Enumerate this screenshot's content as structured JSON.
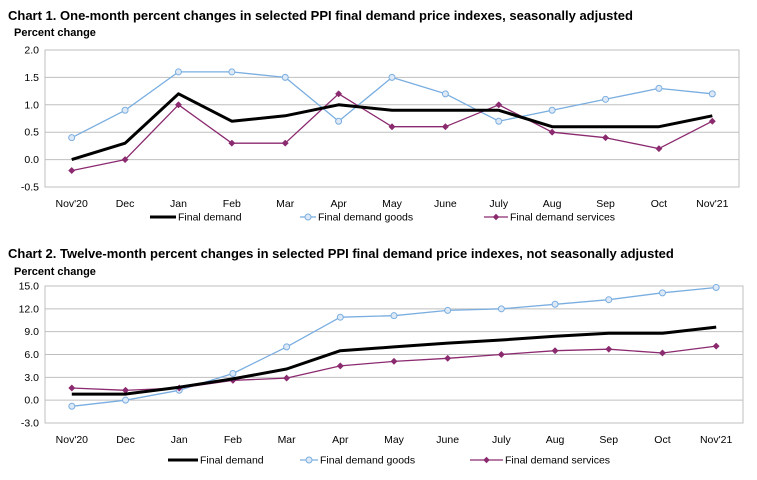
{
  "chart_data": [
    {
      "type": "line",
      "title": "Chart 1. One-month percent changes in selected PPI final demand price indexes, seasonally adjusted",
      "ylabel": "Percent change",
      "xlabel": "",
      "ylim": [
        -0.5,
        2.0
      ],
      "yticks": [
        "2.0",
        "1.5",
        "1.0",
        "0.5",
        "0.0",
        "-0.5"
      ],
      "ytick_values": [
        2.0,
        1.5,
        1.0,
        0.5,
        0.0,
        -0.5
      ],
      "grid": true,
      "legend": "bottom",
      "categories": [
        "Nov'20",
        "Dec",
        "Jan",
        "Feb",
        "Mar",
        "Apr",
        "May",
        "June",
        "July",
        "Aug",
        "Sep",
        "Oct",
        "Nov'21"
      ],
      "series": [
        {
          "name": "Final demand",
          "color": "#000000",
          "marker": "none",
          "values": [
            0.0,
            0.3,
            1.2,
            0.7,
            0.8,
            1.0,
            0.9,
            0.9,
            0.9,
            0.6,
            0.6,
            0.6,
            0.8
          ]
        },
        {
          "name": "Final demand goods",
          "color": "#7aaee0",
          "marker": "circle",
          "values": [
            0.4,
            0.9,
            1.6,
            1.6,
            1.5,
            0.7,
            1.5,
            1.2,
            0.7,
            0.9,
            1.1,
            1.3,
            1.2
          ]
        },
        {
          "name": "Final demand services",
          "color": "#8b2a6f",
          "marker": "diamond",
          "values": [
            -0.2,
            0.0,
            1.0,
            0.3,
            0.3,
            1.2,
            0.6,
            0.6,
            1.0,
            0.5,
            0.4,
            0.2,
            0.7
          ]
        }
      ]
    },
    {
      "type": "line",
      "title": "Chart 2. Twelve-month percent changes in selected PPI final demand price indexes, not seasonally adjusted",
      "ylabel": "Percent change",
      "xlabel": "",
      "ylim": [
        -3.0,
        15.0
      ],
      "yticks": [
        "15.0",
        "12.0",
        "9.0",
        "6.0",
        "3.0",
        "0.0",
        "-3.0"
      ],
      "ytick_values": [
        15.0,
        12.0,
        9.0,
        6.0,
        3.0,
        0.0,
        -3.0
      ],
      "grid": true,
      "legend": "bottom",
      "categories": [
        "Nov'20",
        "Dec",
        "Jan",
        "Feb",
        "Mar",
        "Apr",
        "May",
        "June",
        "July",
        "Aug",
        "Sep",
        "Oct",
        "Nov'21"
      ],
      "series": [
        {
          "name": "Final demand",
          "color": "#000000",
          "marker": "none",
          "values": [
            0.8,
            0.8,
            1.7,
            2.8,
            4.1,
            6.5,
            7.0,
            7.5,
            7.9,
            8.4,
            8.8,
            8.8,
            9.6
          ]
        },
        {
          "name": "Final demand goods",
          "color": "#7aaee0",
          "marker": "circle",
          "values": [
            -0.8,
            0.0,
            1.3,
            3.5,
            7.0,
            10.9,
            11.1,
            11.8,
            12.0,
            12.6,
            13.2,
            14.1,
            14.8
          ]
        },
        {
          "name": "Final demand services",
          "color": "#8b2a6f",
          "marker": "diamond",
          "values": [
            1.6,
            1.3,
            1.6,
            2.6,
            2.9,
            4.5,
            5.1,
            5.5,
            6.0,
            6.5,
            6.7,
            6.2,
            7.1
          ]
        }
      ]
    }
  ]
}
